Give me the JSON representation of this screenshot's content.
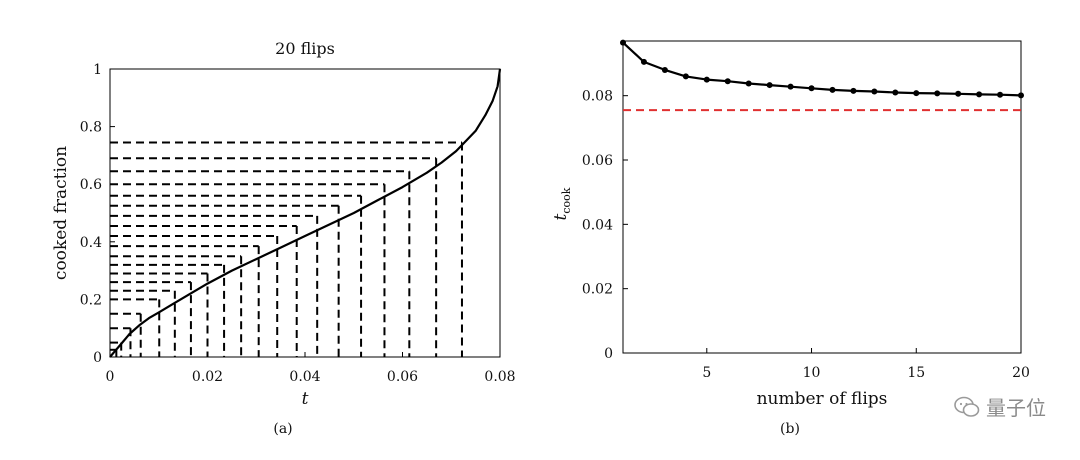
{
  "chart_data": [
    {
      "type": "line",
      "title": "20 flips",
      "xlabel": "t",
      "ylabel": "cooked fraction",
      "caption": "(a)",
      "xlim": [
        0,
        0.08
      ],
      "ylim": [
        0,
        1
      ],
      "xticks": [
        "0",
        "0.02",
        "0.04",
        "0.06",
        "0.08"
      ],
      "yticks": [
        "0",
        "0.2",
        "0.4",
        "0.6",
        "0.8",
        "1"
      ],
      "xtick_values": [
        0,
        0.02,
        0.04,
        0.06,
        0.08
      ],
      "ytick_values": [
        0,
        0.2,
        0.4,
        0.6,
        0.8,
        1
      ],
      "series": [
        {
          "x": [
            0,
            0.001,
            0.002,
            0.004,
            0.006,
            0.008,
            0.01,
            0.013,
            0.016,
            0.02,
            0.025,
            0.03,
            0.035,
            0.04,
            0.045,
            0.05,
            0.055,
            0.06,
            0.065,
            0.068,
            0.071,
            0.073,
            0.075,
            0.077,
            0.0785,
            0.0795,
            0.08
          ],
          "y": [
            0,
            0.02,
            0.04,
            0.08,
            0.11,
            0.135,
            0.155,
            0.185,
            0.215,
            0.255,
            0.3,
            0.34,
            0.38,
            0.42,
            0.46,
            0.5,
            0.545,
            0.59,
            0.64,
            0.675,
            0.715,
            0.75,
            0.785,
            0.84,
            0.89,
            0.94,
            1.0
          ]
        }
      ],
      "flip_times": [
        0.0013,
        0.0023,
        0.0042,
        0.0063,
        0.0101,
        0.0133,
        0.0166,
        0.02,
        0.0234,
        0.0269,
        0.0305,
        0.0343,
        0.0383,
        0.0425,
        0.0469,
        0.0515,
        0.0563,
        0.0614,
        0.0669,
        0.0722
      ],
      "flip_fractions": [
        0.025,
        0.05,
        0.1,
        0.15,
        0.2,
        0.23,
        0.26,
        0.29,
        0.32,
        0.35,
        0.385,
        0.42,
        0.455,
        0.49,
        0.525,
        0.56,
        0.6,
        0.645,
        0.69,
        0.745
      ],
      "grid": false
    },
    {
      "type": "line",
      "title": "",
      "xlabel": "number of flips",
      "ylabel": "t",
      "ylabel_subscript": "cook",
      "caption": "(b)",
      "xlim": [
        1,
        20
      ],
      "ylim": [
        0,
        0.097
      ],
      "xticks": [
        "5",
        "10",
        "15",
        "20"
      ],
      "yticks": [
        "0",
        "0.02",
        "0.04",
        "0.06",
        "0.08"
      ],
      "xtick_values": [
        5,
        10,
        15,
        20
      ],
      "ytick_values": [
        0,
        0.02,
        0.04,
        0.06,
        0.08
      ],
      "series": [
        {
          "x": [
            1,
            2,
            3,
            4,
            5,
            6,
            7,
            8,
            9,
            10,
            11,
            12,
            13,
            14,
            15,
            16,
            17,
            18,
            19,
            20
          ],
          "y": [
            0.0965,
            0.0905,
            0.088,
            0.086,
            0.085,
            0.0845,
            0.0838,
            0.0833,
            0.0828,
            0.0823,
            0.0818,
            0.0815,
            0.0813,
            0.081,
            0.0808,
            0.0807,
            0.0806,
            0.0804,
            0.0803,
            0.0801
          ],
          "color": "#000000"
        }
      ],
      "reference_line": {
        "y": 0.0755,
        "color": "#e03030",
        "style": "dashed"
      },
      "grid": false
    }
  ],
  "watermark": {
    "text": "量子位",
    "icon": "wechat-icon"
  }
}
